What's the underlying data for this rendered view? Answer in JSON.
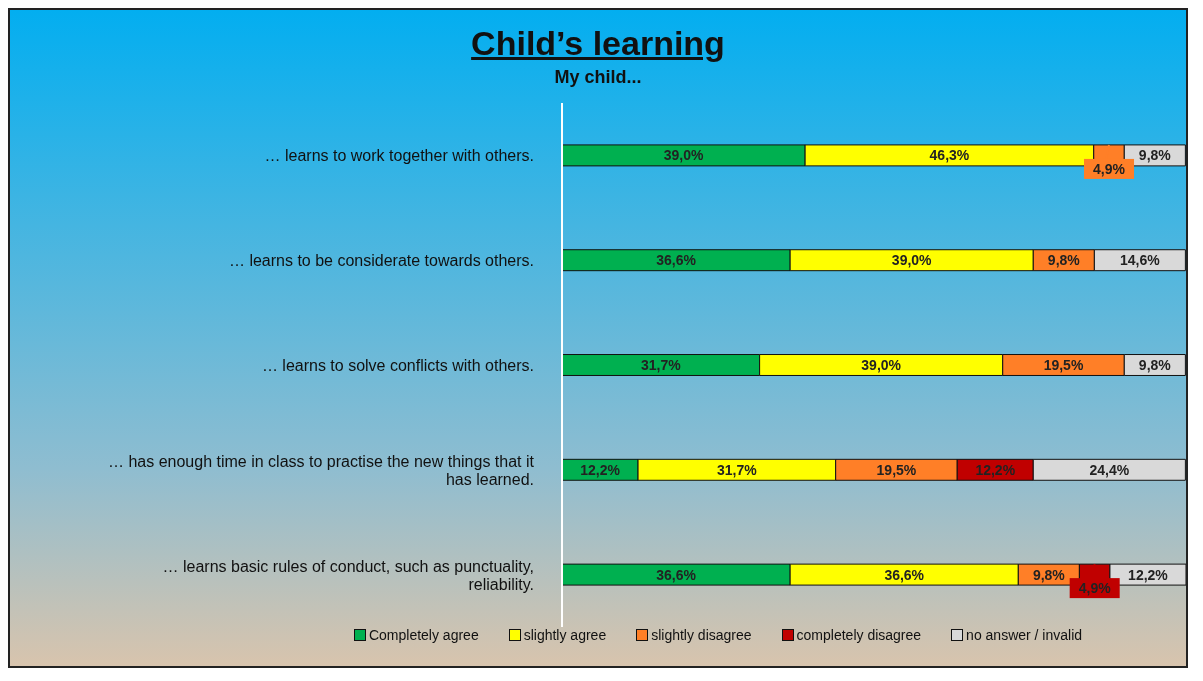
{
  "chart_data": {
    "type": "bar",
    "orientation": "horizontal",
    "stacked": true,
    "title": "Child’s learning",
    "subtitle": "My child...",
    "legend": "bottom",
    "categories": [
      "… learns to work together with others.",
      "… learns to be considerate towards others.",
      "… learns to solve conflicts with others.",
      "… has enough time in class to practise the new things that it has learned.",
      "… learns basic rules of conduct, such as punctuality, reliability."
    ],
    "series": [
      {
        "name": "Completely agree",
        "color": "#00b050",
        "values": [
          39.0,
          36.6,
          31.7,
          12.2,
          36.6
        ],
        "value_labels": [
          "39,0%",
          "36,6%",
          "31,7%",
          "12,2%",
          "36,6%"
        ]
      },
      {
        "name": "slightly agree",
        "color": "#ffff00",
        "values": [
          46.3,
          39.0,
          39.0,
          31.7,
          36.6
        ],
        "value_labels": [
          "46,3%",
          "39,0%",
          "39,0%",
          "31,7%",
          "36,6%"
        ]
      },
      {
        "name": "slightly disagree",
        "color": "#ff7f27",
        "values": [
          4.9,
          9.8,
          19.5,
          19.5,
          9.8
        ],
        "value_labels": [
          "4,9%",
          "9,8%",
          "19,5%",
          "19,5%",
          "9,8%"
        ]
      },
      {
        "name": "completely disagree",
        "color": "#c00000",
        "values": [
          null,
          null,
          null,
          12.2,
          4.9
        ],
        "value_labels": [
          null,
          null,
          null,
          "12,2%",
          "4,9%"
        ]
      },
      {
        "name": "no answer / invalid",
        "color": "#d9d9d9",
        "values": [
          9.8,
          14.6,
          9.8,
          24.4,
          12.2
        ],
        "value_labels": [
          "9,8%",
          "14,6%",
          "9,8%",
          "24,4%",
          "12,2%"
        ]
      }
    ]
  }
}
